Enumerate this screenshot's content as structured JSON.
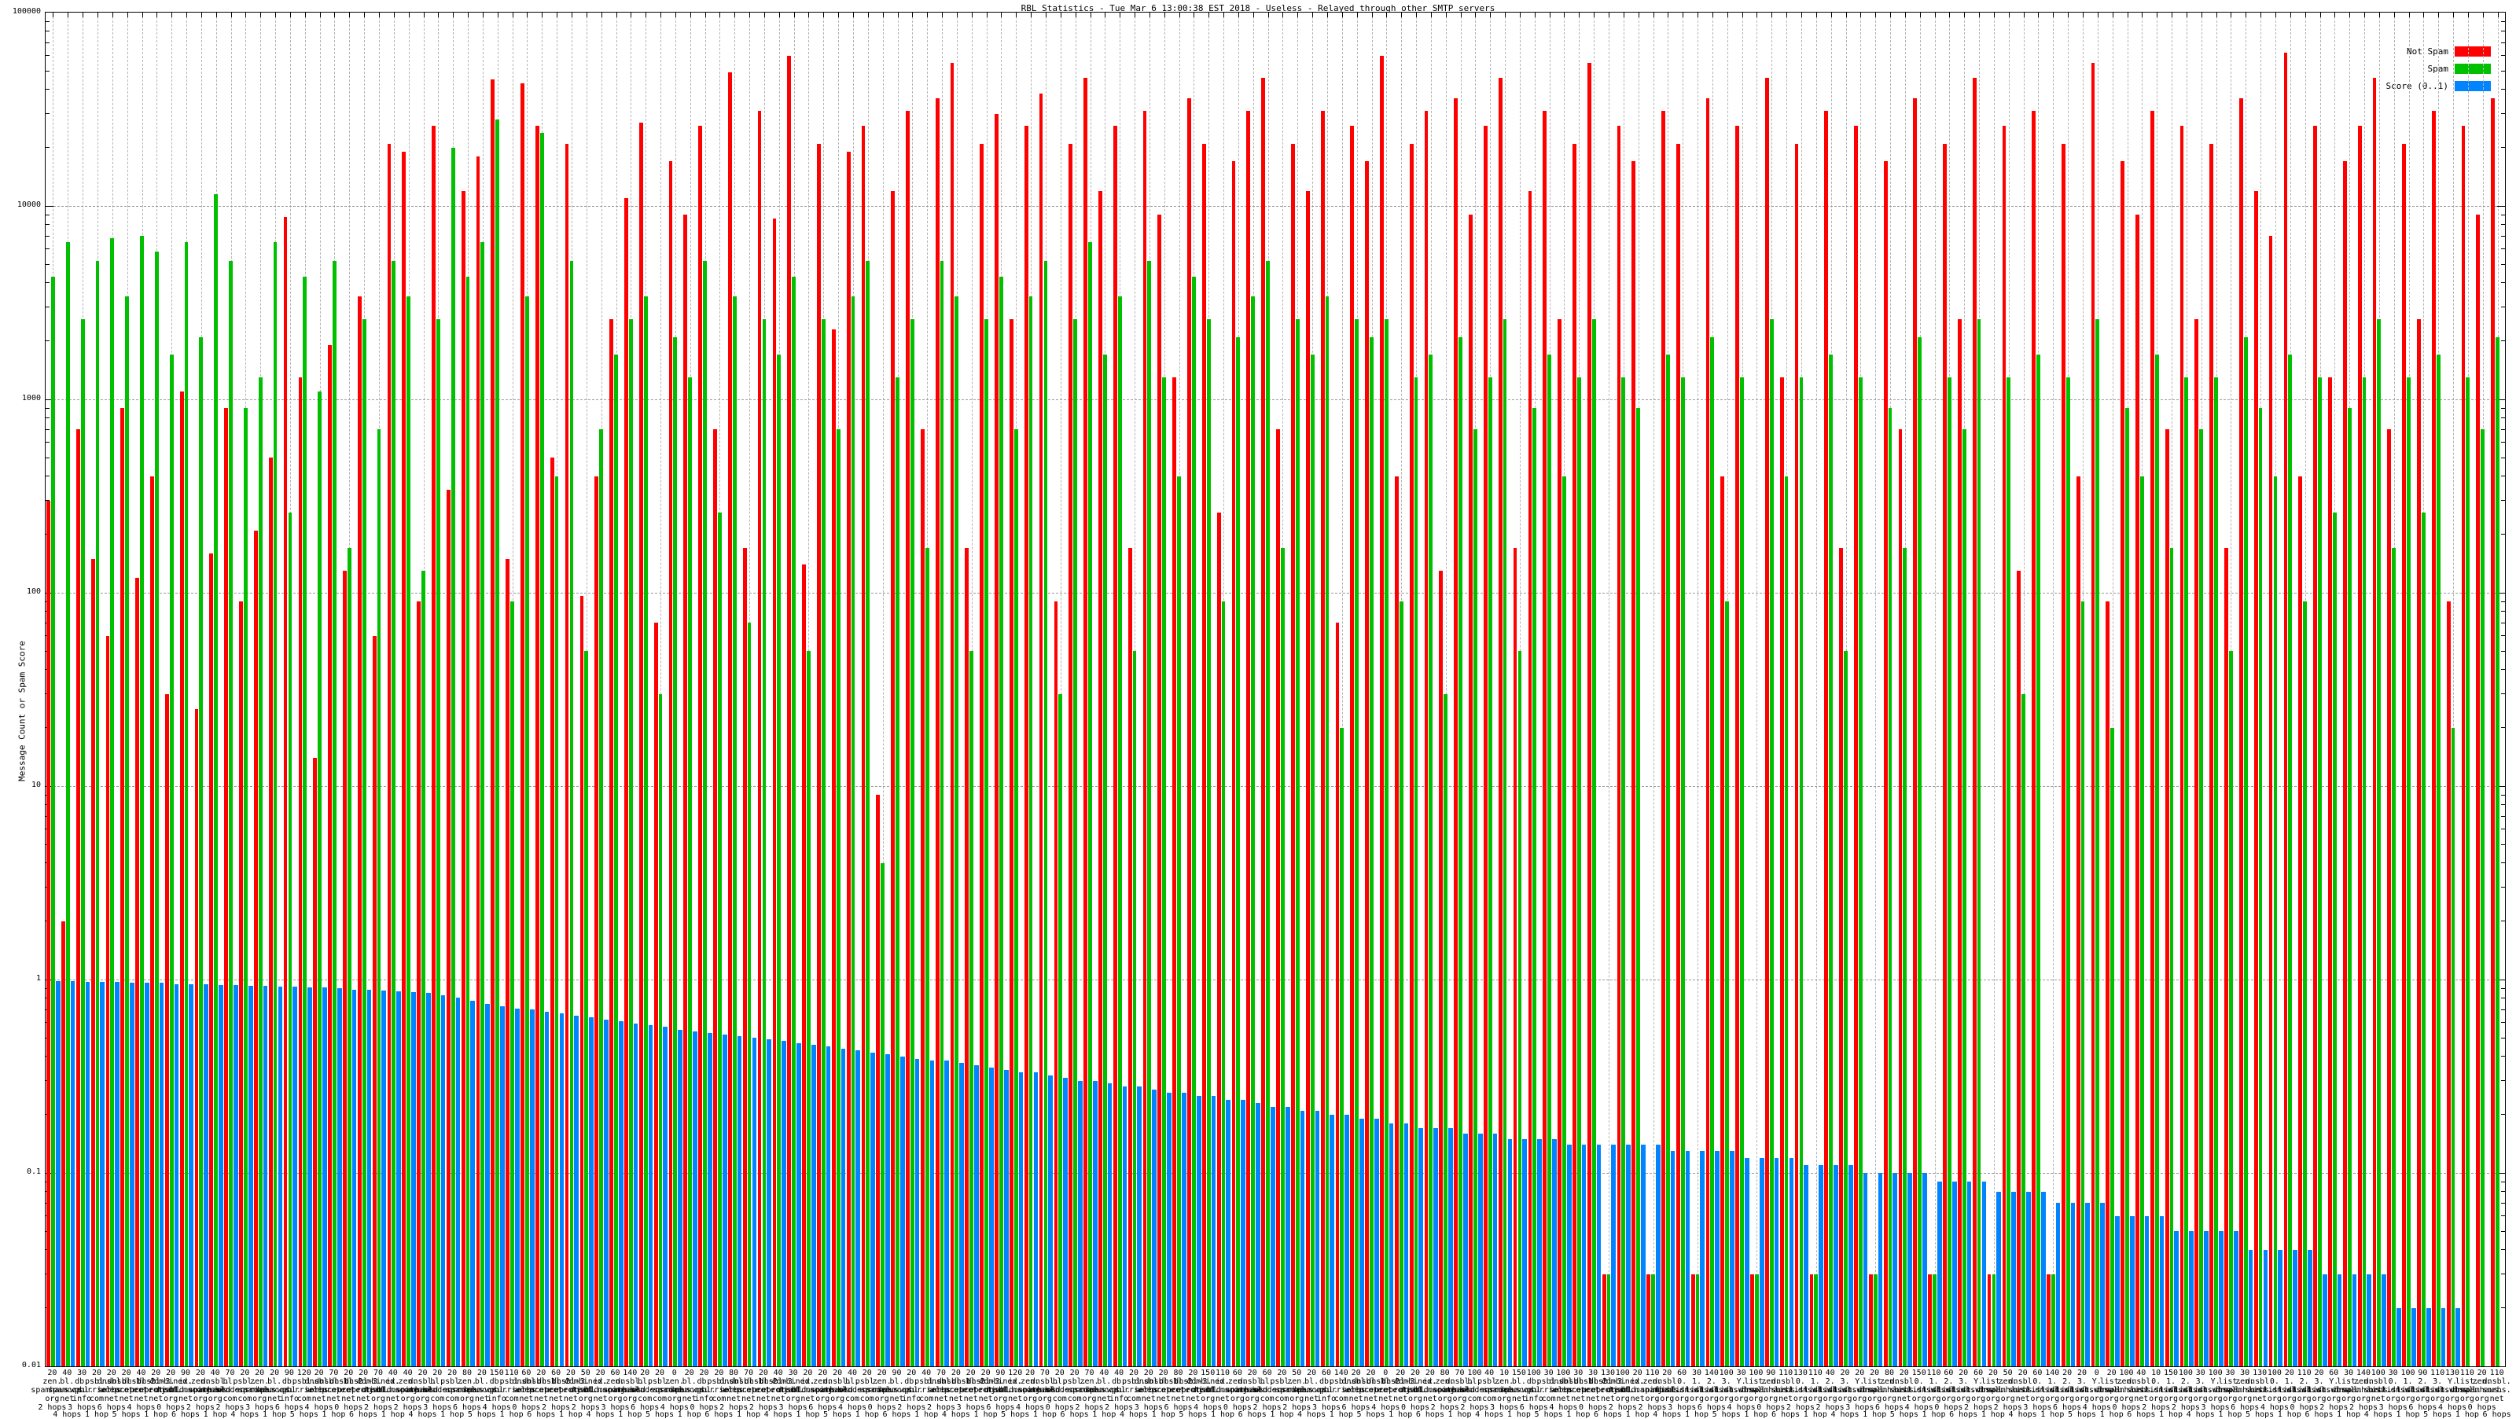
{
  "title": "RBL Statistics - Tue Mar  6 13:00:38 EST 2018 - Useless - Relayed through other SMTP servers",
  "y_axis": {
    "label": "Message Count or Spam Score",
    "ticks": [
      "100000",
      "10000",
      "1000",
      "100",
      "10",
      "1",
      "0.1",
      "0.01"
    ],
    "min": 0.01,
    "max": 100000,
    "scale": "log"
  },
  "legend": [
    {
      "label": "Not Spam",
      "color": "#ff0000"
    },
    {
      "label": "Spam",
      "color": "#00c000"
    },
    {
      "label": "Score (0..1)",
      "color": "#0084ff"
    }
  ],
  "chart_data": {
    "type": "bar",
    "title": "RBL Statistics - Tue Mar  6 13:00:38 EST 2018 - Useless - Relayed through other SMTP servers",
    "xlabel": "",
    "ylabel": "Message Count or Spam Score",
    "ylim": [
      0.01,
      100000
    ],
    "log_y": true,
    "grid": "major-horizontal-and-per-category-vertical",
    "legend_position": "top-right",
    "categories": {
      "count_label": [
        "20",
        "40",
        "30",
        "20",
        "20",
        "20",
        "40",
        "20",
        "20",
        "90",
        "20",
        "40",
        "70",
        "20",
        "20",
        "20",
        "90",
        "120",
        "20",
        "70",
        "20",
        "20",
        "70",
        "40",
        "40",
        "20",
        "20",
        "20",
        "80",
        "20",
        "150",
        "110",
        "60",
        "20",
        "60",
        "20",
        "50",
        "20",
        "60",
        "140",
        "20",
        "20",
        "0",
        "20",
        "20",
        "20",
        "80",
        "70",
        "20",
        "40",
        "30",
        "20",
        "20",
        "20",
        "40",
        "20",
        "20",
        "90",
        "20",
        "40",
        "70",
        "20",
        "20",
        "20",
        "90",
        "120",
        "20",
        "70",
        "20",
        "20",
        "70",
        "40",
        "40",
        "20",
        "20",
        "20",
        "80",
        "20",
        "150",
        "110",
        "60",
        "20",
        "60",
        "20",
        "50",
        "20",
        "60",
        "140",
        "20",
        "20",
        "0",
        "20",
        "20",
        "20",
        "80",
        "70",
        "100",
        "40",
        "10",
        "150",
        "100",
        "30",
        "100",
        "30",
        "30",
        "130",
        "100",
        "20",
        "110",
        "20",
        "60",
        "30",
        "140",
        "100",
        "30",
        "100",
        "90",
        "110",
        "130",
        "110",
        "40",
        "20",
        "20",
        "20",
        "80",
        "20",
        "150",
        "110",
        "60",
        "20",
        "60",
        "20",
        "50",
        "20",
        "60",
        "140",
        "20",
        "20",
        "0",
        "20",
        "100",
        "40",
        "10",
        "150",
        "100",
        "30",
        "100",
        "30",
        "30",
        "130",
        "100",
        "20",
        "110",
        "20",
        "60",
        "30",
        "140",
        "100",
        "30",
        "100",
        "90",
        "110",
        "130",
        "110",
        "20",
        "110"
      ],
      "rbl_host": [
        "zen.spamhaus.org",
        "bl.spamcop.net",
        "db.wpbl.info",
        "psbl.surriel.com",
        "dnsbl.sorbs.net",
        "dnsbl-1.uceprotect.net",
        "dnsbl-2.uceprotect.net",
        "dnsbl-3.uceprotect.net",
        "combined.njabl.org",
        "ix.dnsbl.manitu.net",
        "zen.old.spamhaus.org",
        "dnsbl.njabl.org",
        "bl.score.senderscore.com",
        "psbl.old.surriel.com",
        "zen.spamhaus.org",
        "bl.spamcop.net",
        "db.wpbl.info",
        "psbl.surriel.com",
        "dnsbl.sorbs.net",
        "dnsbl-1.uceprotect.net",
        "dnsbl-2.uceprotect.net",
        "dnsbl-3.uceprotect.net",
        "combined.njabl.org",
        "ix.dnsbl.manitu.net",
        "zen.old.spamhaus.org",
        "dnsbl.njabl.org",
        "bl.score.senderscore.com",
        "psbl.old.surriel.com",
        "zen.spamhaus.org",
        "bl.spamcop.net",
        "db.wpbl.info",
        "psbl.surriel.com",
        "dnsbl.sorbs.net",
        "dnsbl-1.uceprotect.net",
        "dnsbl-2.uceprotect.net",
        "dnsbl-3.uceprotect.net",
        "combined.njabl.org",
        "ix.dnsbl.manitu.net",
        "zen.old.spamhaus.org",
        "dnsbl.njabl.org",
        "bl.score.senderscore.com",
        "psbl.old.surriel.com",
        "zen.spamhaus.org",
        "bl.spamcop.net",
        "db.wpbl.info",
        "psbl.surriel.com",
        "dnsbl.sorbs.net",
        "dnsbl-1.uceprotect.net",
        "dnsbl-2.uceprotect.net",
        "dnsbl-3.uceprotect.net",
        "combined.njabl.org",
        "ix.dnsbl.manitu.net",
        "zen.old.spamhaus.org",
        "dnsbl.njabl.org",
        "bl.score.senderscore.com",
        "psbl.old.surriel.com",
        "zen.spamhaus.org",
        "bl.spamcop.net",
        "db.wpbl.info",
        "psbl.surriel.com",
        "dnsbl.sorbs.net",
        "dnsbl-1.uceprotect.net",
        "dnsbl-2.uceprotect.net",
        "dnsbl-3.uceprotect.net",
        "combined.njabl.org",
        "ix.dnsbl.manitu.net",
        "zen.old.spamhaus.org",
        "dnsbl.njabl.org",
        "bl.score.senderscore.com",
        "psbl.old.surriel.com",
        "zen.spamhaus.org",
        "bl.spamcop.net",
        "db.wpbl.info",
        "psbl.surriel.com",
        "dnsbl.sorbs.net",
        "dnsbl-1.uceprotect.net",
        "dnsbl-2.uceprotect.net",
        "dnsbl-3.uceprotect.net",
        "combined.njabl.org",
        "ix.dnsbl.manitu.net",
        "zen.old.spamhaus.org",
        "dnsbl.njabl.org",
        "bl.score.senderscore.com",
        "psbl.old.surriel.com",
        "zen.spamhaus.org",
        "bl.spamcop.net",
        "db.wpbl.info",
        "psbl.surriel.com",
        "dnsbl.sorbs.net",
        "dnsbl-1.uceprotect.net",
        "dnsbl-2.uceprotect.net",
        "dnsbl-3.uceprotect.net",
        "combined.njabl.org",
        "ix.dnsbl.manitu.net",
        "zen.old.spamhaus.org",
        "dnsbl.njabl.org",
        "bl.score.senderscore.com",
        "psbl.old.surriel.com",
        "zen.spamhaus.org",
        "bl.spamcop.net",
        "db.wpbl.info",
        "psbl.surriel.com",
        "dnsbl.sorbs.net",
        "dnsbl-1.uceprotect.net",
        "dnsbl-2.uceprotect.net",
        "dnsbl-3.uceprotect.net",
        "combined.njabl.org",
        "ix.dnsbl.manitu.net",
        "zen.old.spamhaus.org",
        "dnsbl.njabl.org",
        "0.list.dnswl.org",
        "1.list.dnswl.org",
        "2.list.dnswl.org",
        "3.list.dnswl.org",
        "Y.list.dnswl.org",
        "list.dnswl.org",
        "zen.spamhaus.org",
        "dnsbl.sorbs.net",
        "0.list.dnswl.org",
        "1.list.dnswl.org",
        "2.list.dnswl.org",
        "3.list.dnswl.org",
        "Y.list.dnswl.org",
        "list.dnswl.org",
        "zen.spamhaus.org",
        "dnsbl.sorbs.net",
        "0.list.dnswl.org",
        "1.list.dnswl.org",
        "2.list.dnswl.org",
        "3.list.dnswl.org",
        "Y.list.dnswl.org",
        "list.dnswl.org",
        "zen.spamhaus.org",
        "dnsbl.sorbs.net",
        "0.list.dnswl.org",
        "1.list.dnswl.org",
        "2.list.dnswl.org",
        "3.list.dnswl.org",
        "Y.list.dnswl.org",
        "list.dnswl.org",
        "zen.spamhaus.org",
        "dnsbl.sorbs.net",
        "0.list.dnswl.org",
        "1.list.dnswl.org",
        "2.list.dnswl.org",
        "3.list.dnswl.org",
        "Y.list.dnswl.org",
        "list.dnswl.org",
        "zen.spamhaus.org",
        "dnsbl.sorbs.net",
        "0.list.dnswl.org",
        "1.list.dnswl.org",
        "2.list.dnswl.org",
        "3.list.dnswl.org",
        "Y.list.dnswl.org",
        "list.dnswl.org",
        "zen.spamhaus.org",
        "dnsbl.sorbs.net",
        "0.list.dnswl.org",
        "1.list.dnswl.org",
        "2.list.dnswl.org",
        "3.list.dnswl.org",
        "Y.list.dnswl.org",
        "list.dnswl.org",
        "zen.spamhaus.org",
        "dnsbl.sorbs.net"
      ],
      "hops": [
        "2 hops",
        "4 hops",
        "3 hops",
        "1 hop",
        "6 hops",
        "5 hops",
        "4 hops",
        "1 hop",
        "0 hops",
        "6 hops",
        "2 hops",
        "1 hop",
        "2 hops",
        "4 hops",
        "3 hops",
        "1 hop",
        "6 hops",
        "5 hops",
        "4 hops",
        "1 hop",
        "0 hops",
        "6 hops",
        "2 hops",
        "1 hop",
        "2 hops",
        "4 hops",
        "3 hops",
        "1 hop",
        "6 hops",
        "5 hops",
        "4 hops",
        "1 hop",
        "0 hops",
        "6 hops",
        "2 hops",
        "1 hop",
        "2 hops",
        "4 hops",
        "3 hops",
        "1 hop",
        "6 hops",
        "5 hops",
        "4 hops",
        "1 hop",
        "0 hops",
        "6 hops",
        "2 hops",
        "1 hop",
        "2 hops",
        "4 hops",
        "3 hops",
        "1 hop",
        "6 hops",
        "5 hops",
        "4 hops",
        "1 hop",
        "0 hops",
        "6 hops",
        "2 hops",
        "1 hop",
        "2 hops",
        "4 hops",
        "3 hops",
        "1 hop",
        "6 hops",
        "5 hops",
        "4 hops",
        "1 hop",
        "0 hops",
        "6 hops",
        "2 hops",
        "1 hop",
        "2 hops",
        "4 hops",
        "3 hops",
        "1 hop",
        "6 hops",
        "5 hops",
        "4 hops",
        "1 hop",
        "0 hops",
        "6 hops",
        "2 hops",
        "1 hop",
        "2 hops",
        "4 hops",
        "3 hops",
        "1 hop",
        "6 hops",
        "5 hops",
        "4 hops",
        "1 hop",
        "0 hops",
        "6 hops",
        "2 hops",
        "1 hop",
        "2 hops",
        "4 hops",
        "3 hops",
        "1 hop",
        "6 hops",
        "5 hops",
        "4 hops",
        "1 hop",
        "0 hops",
        "6 hops",
        "2 hops",
        "1 hop",
        "2 hops",
        "4 hops",
        "3 hops",
        "1 hop",
        "6 hops",
        "5 hops",
        "4 hops",
        "1 hop",
        "0 hops",
        "6 hops",
        "2 hops",
        "1 hop",
        "2 hops",
        "4 hops",
        "3 hops",
        "1 hop",
        "6 hops",
        "5 hops",
        "4 hops",
        "1 hop",
        "0 hops",
        "6 hops",
        "2 hops",
        "1 hop",
        "2 hops",
        "4 hops",
        "3 hops",
        "1 hop",
        "6 hops",
        "5 hops",
        "4 hops",
        "1 hop",
        "0 hops",
        "6 hops",
        "2 hops",
        "1 hop",
        "2 hops",
        "4 hops",
        "3 hops",
        "1 hop",
        "6 hops",
        "5 hops",
        "4 hops",
        "1 hop",
        "0 hops",
        "6 hops",
        "2 hops",
        "1 hop",
        "2 hops",
        "4 hops",
        "3 hops",
        "1 hop",
        "6 hops",
        "5 hops",
        "4 hops",
        "1 hop",
        "0 hops",
        "6 hops"
      ]
    },
    "series": [
      {
        "name": "Not Spam",
        "color": "#ff0000",
        "values": [
          300,
          2,
          700,
          150,
          60,
          900,
          120,
          400,
          30,
          1100,
          25,
          160,
          900,
          90,
          210,
          500,
          8800,
          1300,
          14,
          1900,
          130,
          3400,
          60,
          21000,
          19000,
          90,
          26000,
          340,
          12000,
          18000,
          45000,
          150,
          43000,
          26000,
          500,
          21000,
          96,
          400,
          2600,
          11000,
          27000,
          70,
          17000,
          9000,
          26000,
          700,
          49000,
          170,
          31000,
          8600,
          60000,
          140,
          21000,
          2300,
          19000,
          26000,
          9,
          12000,
          31000,
          700,
          36000,
          55000,
          170,
          21000,
          30000,
          2600,
          26000,
          38000,
          90,
          21000,
          46000,
          12000,
          26000,
          170,
          31000,
          9000,
          1300,
          36000,
          21000,
          260,
          17000,
          31000,
          46000,
          700,
          21000,
          12000,
          31000,
          70,
          26000,
          17000,
          60000,
          400,
          21000,
          31000,
          130,
          36000,
          9000,
          26000,
          46000,
          170,
          12000,
          31000,
          2600,
          21000,
          55000,
          0.03,
          26000,
          17000,
          0.03,
          31000,
          21000,
          0.03,
          36000,
          400,
          26000,
          0.03,
          46000,
          1300,
          21000,
          0.03,
          31000,
          170,
          26000,
          0.03,
          17000,
          700,
          36000,
          0.03,
          21000,
          2600,
          46000,
          0.03,
          26000,
          130,
          31000,
          0.03,
          21000,
          400,
          55000,
          90,
          17000,
          9000,
          31000,
          700,
          26000,
          2600,
          21000,
          170,
          36000,
          12000,
          7000,
          62000,
          400,
          26000,
          1300,
          17000,
          26000,
          46000,
          700,
          21000,
          2600,
          31000,
          90,
          26000,
          9000,
          36000
        ]
      },
      {
        "name": "Spam",
        "color": "#00c000",
        "values": [
          4300,
          6500,
          2600,
          5200,
          6800,
          3400,
          7000,
          5800,
          1700,
          6500,
          2100,
          11500,
          5200,
          900,
          1300,
          6500,
          260,
          4300,
          1100,
          5200,
          170,
          2600,
          700,
          5200,
          3400,
          130,
          2600,
          20000,
          4300,
          6500,
          28000,
          90,
          3400,
          24000,
          400,
          5200,
          50,
          700,
          1700,
          2600,
          3400,
          30,
          2100,
          1300,
          5200,
          260,
          3400,
          70,
          2600,
          1700,
          4300,
          50,
          2600,
          700,
          3400,
          5200,
          4,
          1300,
          2600,
          170,
          5200,
          3400,
          50,
          2600,
          4300,
          700,
          3400,
          5200,
          30,
          2600,
          6500,
          1700,
          3400,
          50,
          5200,
          1300,
          400,
          4300,
          2600,
          90,
          2100,
          3400,
          5200,
          170,
          2600,
          1700,
          3400,
          20,
          2600,
          2100,
          2600,
          90,
          1300,
          1700,
          30,
          2100,
          700,
          1300,
          2600,
          50,
          900,
          1700,
          400,
          1300,
          2600,
          0.03,
          1300,
          900,
          0.03,
          1700,
          1300,
          0.03,
          2100,
          90,
          1300,
          0.03,
          2600,
          400,
          1300,
          0.03,
          1700,
          50,
          1300,
          0.03,
          900,
          170,
          2100,
          0.03,
          1300,
          700,
          2600,
          0.03,
          1300,
          30,
          1700,
          0.03,
          1300,
          90,
          2600,
          20,
          900,
          400,
          1700,
          170,
          1300,
          700,
          1300,
          50,
          2100,
          900,
          400,
          1700,
          90,
          1300,
          260,
          900,
          1300,
          2600,
          170,
          1300,
          260,
          1700,
          20,
          1300,
          700,
          2100
        ]
      },
      {
        "name": "Score (0..1)",
        "color": "#0084ff",
        "values": [
          0.98,
          0.98,
          0.97,
          0.97,
          0.97,
          0.96,
          0.96,
          0.96,
          0.95,
          0.95,
          0.95,
          0.94,
          0.94,
          0.93,
          0.93,
          0.92,
          0.92,
          0.91,
          0.91,
          0.9,
          0.89,
          0.89,
          0.88,
          0.87,
          0.86,
          0.85,
          0.83,
          0.81,
          0.78,
          0.75,
          0.73,
          0.71,
          0.7,
          0.68,
          0.67,
          0.65,
          0.64,
          0.62,
          0.61,
          0.59,
          0.58,
          0.57,
          0.55,
          0.54,
          0.53,
          0.52,
          0.51,
          0.5,
          0.49,
          0.48,
          0.47,
          0.46,
          0.45,
          0.44,
          0.43,
          0.42,
          0.41,
          0.4,
          0.39,
          0.38,
          0.38,
          0.37,
          0.36,
          0.35,
          0.34,
          0.33,
          0.33,
          0.32,
          0.31,
          0.3,
          0.3,
          0.29,
          0.28,
          0.28,
          0.27,
          0.26,
          0.26,
          0.25,
          0.25,
          0.24,
          0.24,
          0.23,
          0.22,
          0.22,
          0.21,
          0.21,
          0.2,
          0.2,
          0.19,
          0.19,
          0.18,
          0.18,
          0.17,
          0.17,
          0.17,
          0.16,
          0.16,
          0.16,
          0.15,
          0.15,
          0.15,
          0.15,
          0.14,
          0.14,
          0.14,
          0.14,
          0.14,
          0.14,
          0.14,
          0.13,
          0.13,
          0.13,
          0.13,
          0.13,
          0.12,
          0.12,
          0.12,
          0.12,
          0.11,
          0.11,
          0.11,
          0.11,
          0.1,
          0.1,
          0.1,
          0.1,
          0.1,
          0.09,
          0.09,
          0.09,
          0.09,
          0.08,
          0.08,
          0.08,
          0.08,
          0.07,
          0.07,
          0.07,
          0.07,
          0.06,
          0.06,
          0.06,
          0.06,
          0.05,
          0.05,
          0.05,
          0.05,
          0.05,
          0.04,
          0.04,
          0.04,
          0.04,
          0.04,
          0.03,
          0.03,
          0.03,
          0.03,
          0.03,
          0.02,
          0.02,
          0.02,
          0.02,
          0.02,
          0.01,
          0.01,
          0.01
        ]
      }
    ]
  }
}
